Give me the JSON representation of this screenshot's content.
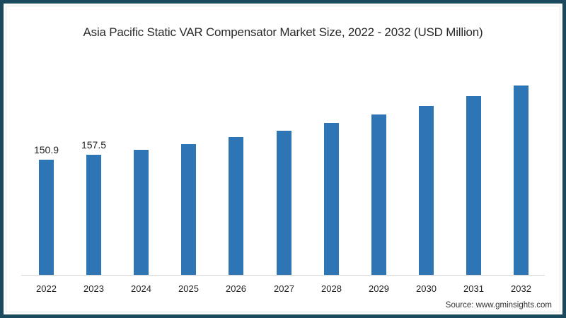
{
  "title": "Asia Pacific Static VAR Compensator Market Size, 2022 - 2032 (USD Million)",
  "source": "Source: www.gminsights.com",
  "colors": {
    "bar": "#2e75b6",
    "border": "#1b4a5e"
  },
  "chart_data": {
    "type": "bar",
    "title": "Asia Pacific Static VAR Compensator Market Size, 2022 - 2032 (USD Million)",
    "xlabel": "",
    "ylabel": "USD Million",
    "categories": [
      "2022",
      "2023",
      "2024",
      "2025",
      "2026",
      "2027",
      "2028",
      "2029",
      "2030",
      "2031",
      "2032"
    ],
    "values": [
      150.9,
      157.5,
      164,
      171,
      181,
      189,
      199,
      210,
      221,
      234,
      248
    ],
    "data_labels": {
      "2022": "150.9",
      "2023": "157.5"
    },
    "ylim": [
      0,
      260
    ],
    "grid": false,
    "legend": null
  }
}
